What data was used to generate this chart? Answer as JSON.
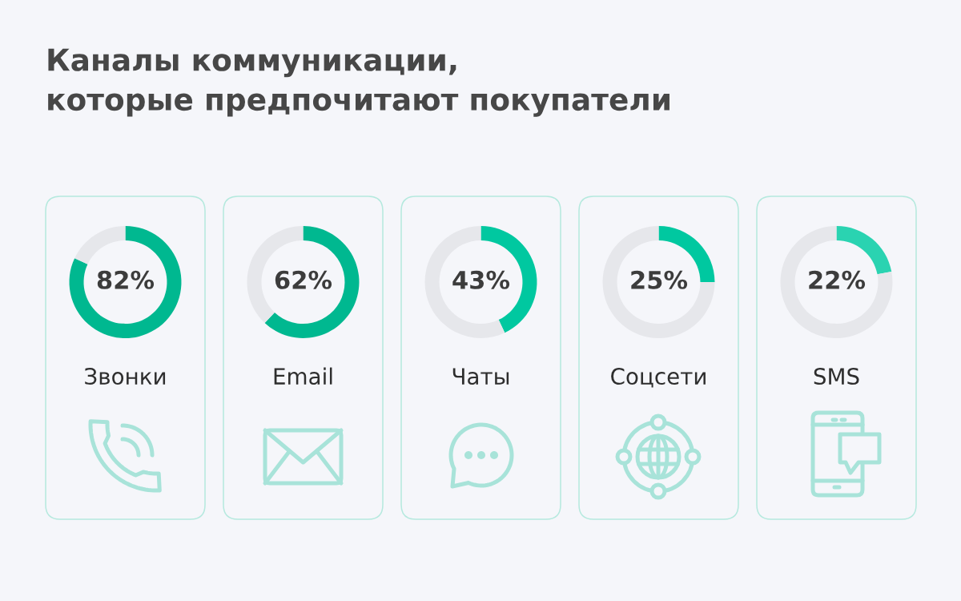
{
  "chart_data": [
    {
      "type": "other",
      "title": "Каналы коммуникации,\nкоторые предпочитают покупатели"
    },
    {
      "type": "donut",
      "title": "Звонки",
      "categories": [
        null,
        null
      ],
      "values": [
        82,
        18
      ],
      "colors": [
        "#00b890",
        "#e6e7eb"
      ],
      "value_labels": [
        "82%",
        null
      ]
    },
    {
      "type": "donut",
      "title": "Email",
      "categories": [
        null,
        null
      ],
      "values": [
        62,
        38
      ],
      "colors": [
        "#00b890",
        "#e6e7eb"
      ],
      "value_labels": [
        "62%",
        null
      ]
    },
    {
      "type": "donut",
      "title": "Чаты",
      "categories": [
        null,
        null
      ],
      "values": [
        43,
        57
      ],
      "colors": [
        "#00c8a0",
        "#e6e7eb"
      ],
      "value_labels": [
        "43%",
        null
      ]
    },
    {
      "type": "donut",
      "title": "Соцсети",
      "categories": [
        null,
        null
      ],
      "values": [
        25,
        75
      ],
      "colors": [
        "#00c8a0",
        "#e6e7eb"
      ],
      "value_labels": [
        "25%",
        null
      ]
    },
    {
      "type": "donut",
      "title": "SMS",
      "categories": [
        null,
        null
      ],
      "values": [
        22,
        78
      ],
      "colors": [
        "#2ad3b1",
        "#e6e7eb"
      ],
      "value_labels": [
        "22%",
        null
      ]
    }
  ]
}
